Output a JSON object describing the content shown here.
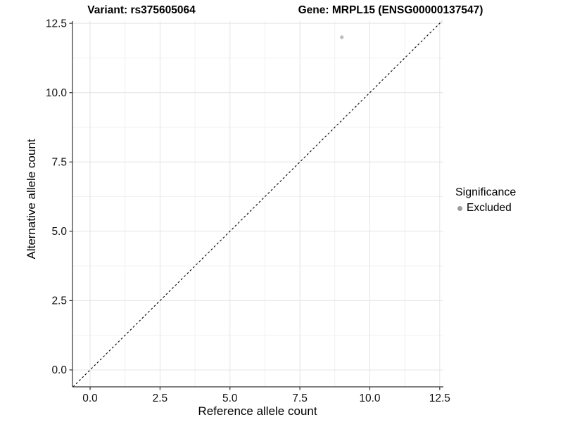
{
  "titles": {
    "variant_title": "Variant: rs375605064",
    "gene_title": "Gene: MRPL15 (ENSG00000137547)"
  },
  "legend": {
    "title": "Significance",
    "items": [
      {
        "label": "Excluded",
        "marker": "circle",
        "color": "#9c9c9c"
      }
    ]
  },
  "chart_data": {
    "type": "scatter",
    "xlabel": "Reference allele count",
    "ylabel": "Alternative allele count",
    "x_ticks": [
      0,
      2.5,
      5,
      7.5,
      10,
      12.5
    ],
    "x_tick_labels": [
      "0.0",
      "2.5",
      "5.0",
      "7.5",
      "10.0",
      "12.5"
    ],
    "y_ticks": [
      0,
      2.5,
      5,
      7.5,
      10,
      12.5
    ],
    "y_tick_labels": [
      "0.0",
      "2.5",
      "5.0",
      "7.5",
      "10.0",
      "12.5"
    ],
    "x_minor_ticks": [
      1.25,
      3.75,
      6.25,
      8.75,
      11.25
    ],
    "y_minor_ticks": [
      1.25,
      3.75,
      6.25,
      8.75,
      11.25
    ],
    "xlim": [
      -0.63,
      12.63
    ],
    "ylim": [
      -0.61,
      12.58
    ],
    "grid": true,
    "legend_position": "right",
    "points": [
      {
        "x": 9,
        "y": 12,
        "series": "Excluded"
      }
    ],
    "identity_line": {
      "equation": "y = x",
      "style": "dashed",
      "x1": -0.61,
      "y1": -0.61,
      "x2": 12.58,
      "y2": 12.58
    },
    "colors": {
      "point": "#bdbdbd",
      "legend_key": "#9c9c9c",
      "grid_major": "#e4e4e4",
      "grid_minor": "#f1f1f1",
      "axis_line": "#333333",
      "tick_mark": "#333333",
      "identity_line": "#000000",
      "text": "#000000"
    }
  }
}
